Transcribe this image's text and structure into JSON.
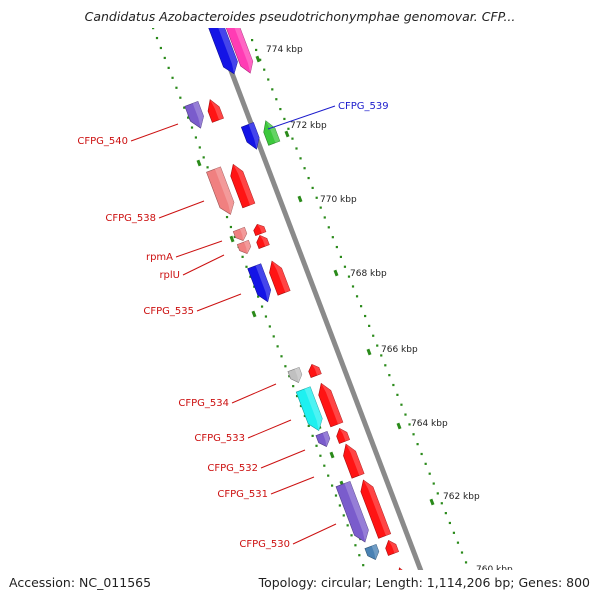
{
  "title": "Candidatus Azobacteroides pseudotrichonymphae genomovar. CFP...",
  "footer": {
    "accession": "Accession: NC_011565",
    "topology": "Topology: circular; Length: 1,114,206 bp; Genes: 800"
  },
  "scale_labels": [
    "774 kbp",
    "772 kbp",
    "770 kbp",
    "768 kbp",
    "766 kbp",
    "764 kbp",
    "762 kbp",
    "760 kbp"
  ],
  "gene_labels": [
    {
      "text": "CFPG_539",
      "color": "#1c1ccc"
    },
    {
      "text": "CFPG_540",
      "color": "#cc1111"
    },
    {
      "text": "CFPG_538",
      "color": "#cc1111"
    },
    {
      "text": "rpmA",
      "color": "#cc1111"
    },
    {
      "text": "rplU",
      "color": "#cc1111"
    },
    {
      "text": "CFPG_535",
      "color": "#cc1111"
    },
    {
      "text": "CFPG_534",
      "color": "#cc1111"
    },
    {
      "text": "CFPG_533",
      "color": "#cc1111"
    },
    {
      "text": "CFPG_532",
      "color": "#cc1111"
    },
    {
      "text": "CFPG_531",
      "color": "#cc1111"
    },
    {
      "text": "CFPG_530",
      "color": "#cc1111"
    }
  ],
  "colors": {
    "backbone": "#8a8a8a",
    "tick": "#2a8a1a",
    "blue": "#1414e6",
    "magenta": "#ff3cb4",
    "red": "#ff1414",
    "purple": "#7a5ccc",
    "salmon": "#f08080",
    "green": "#3cc83c",
    "cyan": "#1ef0f0",
    "gray": "#c0c0c0",
    "steel": "#4a82b4",
    "yellow": "#f0e68c"
  }
}
